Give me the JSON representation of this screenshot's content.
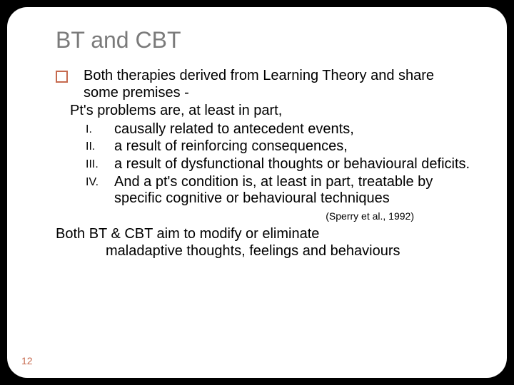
{
  "colors": {
    "background": "#000000",
    "slide_bg": "#ffffff",
    "title_color": "#7a7a7a",
    "text_color": "#000000",
    "accent": "#c66a4f"
  },
  "typography": {
    "title_fontsize": 32,
    "body_fontsize": 20,
    "roman_fontsize": 16,
    "citation_fontsize": 14,
    "pagenum_fontsize": 14,
    "font_family": "Arial"
  },
  "title": "BT and CBT",
  "intro": "Both therapies derived from Learning Theory and share some premises -",
  "pt_line": "Pt's problems are, at least in part,",
  "items": [
    {
      "num": "I.",
      "text": "causally related to antecedent events,"
    },
    {
      "num": "II.",
      "text": "a result of reinforcing consequences,"
    },
    {
      "num": "III.",
      "text": "a result of dysfunctional thoughts or behavioural deficits."
    },
    {
      "num": "IV.",
      "text": "And a pt's condition is, at least in part, treatable by specific cognitive or behavioural techniques"
    }
  ],
  "citation": "(Sperry et al., 1992)",
  "conclusion_l1": "Both BT & CBT aim to modify or eliminate",
  "conclusion_l2": "maladaptive thoughts, feelings and behaviours",
  "page_number": "12"
}
